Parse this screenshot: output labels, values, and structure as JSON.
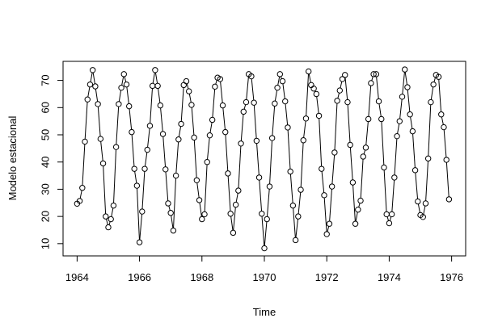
{
  "chart_data": {
    "type": "line",
    "markers": "open-circle",
    "color": "#000000",
    "title": "",
    "xlabel": "Time",
    "ylabel": "Modelo estacional",
    "xlim": [
      1963.55,
      1976.45
    ],
    "ylim": [
      5.5,
      77
    ],
    "xticks": [
      1964,
      1966,
      1968,
      1970,
      1972,
      1974,
      1976
    ],
    "yticks": [
      10,
      20,
      30,
      40,
      50,
      60,
      70
    ],
    "grid": false,
    "legend": "none",
    "x_start": 1964.0,
    "x_step": 0.0833333,
    "series": [
      {
        "values": [
          24.7,
          25.7,
          30.5,
          47.5,
          63.0,
          68.5,
          73.8,
          67.8,
          61.3,
          48.5,
          39.5,
          20.0,
          16.0,
          19.0,
          24.0,
          45.5,
          61.3,
          67.3,
          72.3,
          68.5,
          60.5,
          51.0,
          37.5,
          31.3,
          10.5,
          21.8,
          37.5,
          44.5,
          53.3,
          68.0,
          73.8,
          68.0,
          60.8,
          50.3,
          37.3,
          24.8,
          21.3,
          14.8,
          35.0,
          48.3,
          54.0,
          68.3,
          69.7,
          66.0,
          61.0,
          49.0,
          33.3,
          26.0,
          19.0,
          20.8,
          40.0,
          49.8,
          55.5,
          67.7,
          71.0,
          70.5,
          60.8,
          51.0,
          35.8,
          21.0,
          14.0,
          24.3,
          29.5,
          46.8,
          58.5,
          62.0,
          72.3,
          71.5,
          61.8,
          47.8,
          34.3,
          21.0,
          8.3,
          19.0,
          31.0,
          48.8,
          61.5,
          67.3,
          72.3,
          69.7,
          62.3,
          52.7,
          36.5,
          24.0,
          11.3,
          20.0,
          29.8,
          48.0,
          56.0,
          73.3,
          68.3,
          67.0,
          65.0,
          57.0,
          37.5,
          27.8,
          13.5,
          17.3,
          31.0,
          43.5,
          62.5,
          66.3,
          70.5,
          72.0,
          62.0,
          46.3,
          32.5,
          17.3,
          22.5,
          25.8,
          42.0,
          45.3,
          55.8,
          69.0,
          72.3,
          72.3,
          62.3,
          55.8,
          38.0,
          20.8,
          17.5,
          20.8,
          34.3,
          49.5,
          55.0,
          64.0,
          74.0,
          67.5,
          57.5,
          51.3,
          37.0,
          25.5,
          20.5,
          19.8,
          24.8,
          41.3,
          62.0,
          68.5,
          72.0,
          71.3,
          57.5,
          52.8,
          40.8,
          26.3
        ]
      }
    ]
  },
  "axes": {
    "xlabel": "Time",
    "ylabel": "Modelo estacional",
    "xtick_labels": [
      "1964",
      "1966",
      "1968",
      "1970",
      "1972",
      "1974",
      "1976"
    ],
    "ytick_labels": [
      "10",
      "20",
      "30",
      "40",
      "50",
      "60",
      "70"
    ]
  }
}
